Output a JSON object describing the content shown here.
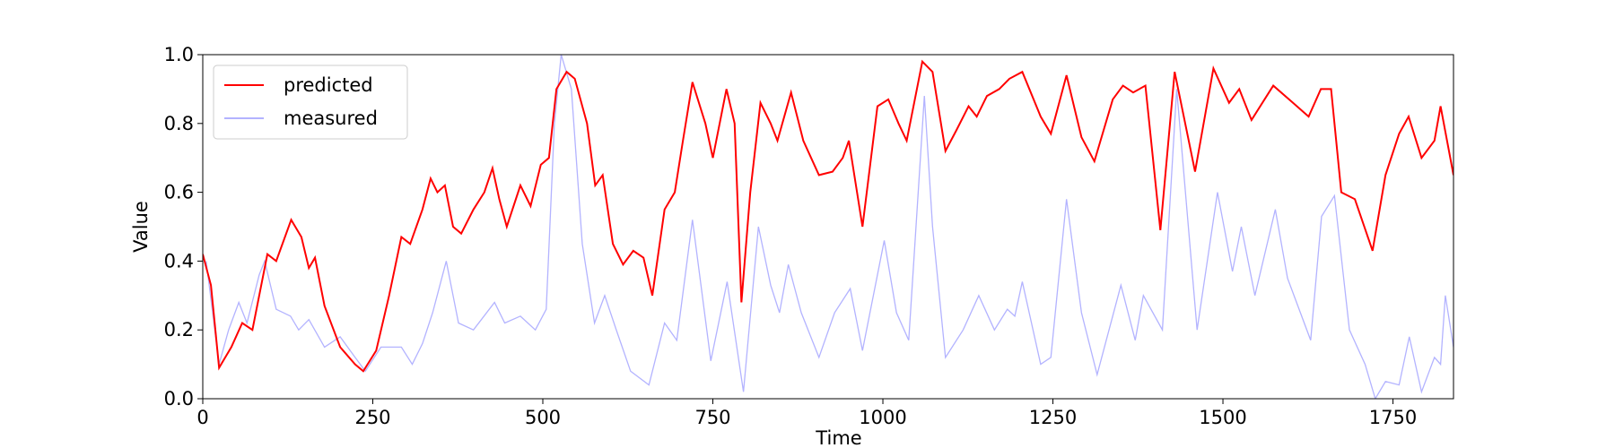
{
  "chart_data": {
    "type": "line",
    "xlabel": "Time",
    "ylabel": "Value",
    "xlim": [
      0,
      1839
    ],
    "ylim": [
      0,
      1.0
    ],
    "xticks": [
      0,
      250,
      500,
      750,
      1000,
      1250,
      1500,
      1750
    ],
    "yticks": [
      {
        "value": 0,
        "label": "0.0"
      },
      {
        "value": 0.2,
        "label": "0.2"
      },
      {
        "value": 0.4,
        "label": "0.4"
      },
      {
        "value": 0.6,
        "label": "0.6"
      },
      {
        "value": 0.8,
        "label": "0.8"
      },
      {
        "value": 1.0,
        "label": "1.0"
      }
    ],
    "legend": "upper left",
    "series": [
      {
        "name": "predicted",
        "color": "#ff0000",
        "x": [
          0,
          12,
          24,
          42,
          58,
          73,
          95,
          108,
          130,
          145,
          156,
          165,
          179,
          202,
          224,
          236,
          255,
          274,
          292,
          305,
          323,
          335,
          345,
          356,
          368,
          380,
          398,
          414,
          426,
          436,
          447,
          467,
          482,
          497,
          509,
          520,
          535,
          547,
          565,
          577,
          588,
          603,
          618,
          633,
          648,
          661,
          679,
          694,
          706,
          720,
          739,
          750,
          770,
          782,
          792,
          805,
          820,
          835,
          845,
          865,
          883,
          906,
          926,
          941,
          950,
          970,
          992,
          1008,
          1023,
          1035,
          1058,
          1073,
          1092,
          1108,
          1126,
          1138,
          1153,
          1171,
          1186,
          1205,
          1232,
          1247,
          1270,
          1292,
          1311,
          1338,
          1353,
          1368,
          1386,
          1408,
          1429,
          1459,
          1486,
          1509,
          1524,
          1542,
          1574,
          1603,
          1626,
          1644,
          1659,
          1674,
          1694,
          1720,
          1739,
          1759,
          1773,
          1792,
          1811,
          1820,
          1839
        ],
        "values": [
          0.42,
          0.33,
          0.09,
          0.15,
          0.22,
          0.2,
          0.42,
          0.4,
          0.52,
          0.47,
          0.38,
          0.41,
          0.27,
          0.15,
          0.1,
          0.08,
          0.14,
          0.3,
          0.47,
          0.45,
          0.55,
          0.64,
          0.6,
          0.62,
          0.5,
          0.48,
          0.55,
          0.6,
          0.67,
          0.58,
          0.5,
          0.62,
          0.56,
          0.68,
          0.7,
          0.9,
          0.95,
          0.93,
          0.8,
          0.62,
          0.65,
          0.45,
          0.39,
          0.43,
          0.41,
          0.3,
          0.55,
          0.6,
          0.75,
          0.92,
          0.8,
          0.7,
          0.9,
          0.8,
          0.28,
          0.6,
          0.86,
          0.8,
          0.75,
          0.89,
          0.75,
          0.65,
          0.66,
          0.7,
          0.75,
          0.5,
          0.85,
          0.87,
          0.8,
          0.75,
          0.98,
          0.95,
          0.72,
          0.78,
          0.85,
          0.82,
          0.88,
          0.9,
          0.93,
          0.95,
          0.82,
          0.77,
          0.94,
          0.76,
          0.69,
          0.87,
          0.91,
          0.89,
          0.91,
          0.49,
          0.95,
          0.66,
          0.96,
          0.86,
          0.9,
          0.81,
          0.91,
          0.86,
          0.82,
          0.9,
          0.9,
          0.6,
          0.58,
          0.43,
          0.65,
          0.77,
          0.82,
          0.7,
          0.75,
          0.85,
          0.65
        ]
      },
      {
        "name": "measured",
        "color": "#b3b3ff",
        "x": [
          5,
          24,
          38,
          53,
          65,
          83,
          91,
          108,
          129,
          141,
          156,
          179,
          202,
          224,
          239,
          262,
          292,
          308,
          323,
          338,
          358,
          376,
          398,
          429,
          444,
          467,
          489,
          505,
          517,
          527,
          542,
          558,
          576,
          591,
          608,
          629,
          656,
          679,
          697,
          720,
          747,
          771,
          795,
          817,
          835,
          848,
          861,
          880,
          906,
          929,
          952,
          970,
          1002,
          1020,
          1038,
          1061,
          1073,
          1092,
          1118,
          1141,
          1164,
          1183,
          1194,
          1205,
          1232,
          1247,
          1270,
          1292,
          1315,
          1350,
          1371,
          1383,
          1411,
          1432,
          1462,
          1492,
          1514,
          1527,
          1547,
          1577,
          1595,
          1629,
          1645,
          1664,
          1686,
          1709,
          1724,
          1739,
          1759,
          1774,
          1792,
          1811,
          1820,
          1827,
          1839
        ],
        "values": [
          0.4,
          0.1,
          0.2,
          0.28,
          0.22,
          0.36,
          0.4,
          0.26,
          0.24,
          0.2,
          0.23,
          0.15,
          0.18,
          0.12,
          0.08,
          0.15,
          0.15,
          0.1,
          0.16,
          0.25,
          0.4,
          0.22,
          0.2,
          0.28,
          0.22,
          0.24,
          0.2,
          0.26,
          0.8,
          1.0,
          0.9,
          0.45,
          0.22,
          0.3,
          0.2,
          0.08,
          0.04,
          0.22,
          0.17,
          0.52,
          0.11,
          0.34,
          0.02,
          0.5,
          0.33,
          0.25,
          0.39,
          0.25,
          0.12,
          0.25,
          0.32,
          0.14,
          0.46,
          0.25,
          0.17,
          0.88,
          0.5,
          0.12,
          0.2,
          0.3,
          0.2,
          0.26,
          0.24,
          0.34,
          0.1,
          0.12,
          0.58,
          0.25,
          0.07,
          0.33,
          0.17,
          0.3,
          0.2,
          0.9,
          0.2,
          0.6,
          0.37,
          0.5,
          0.3,
          0.55,
          0.35,
          0.17,
          0.53,
          0.59,
          0.2,
          0.1,
          0.0,
          0.05,
          0.04,
          0.18,
          0.02,
          0.12,
          0.1,
          0.3,
          0.15
        ]
      }
    ]
  }
}
